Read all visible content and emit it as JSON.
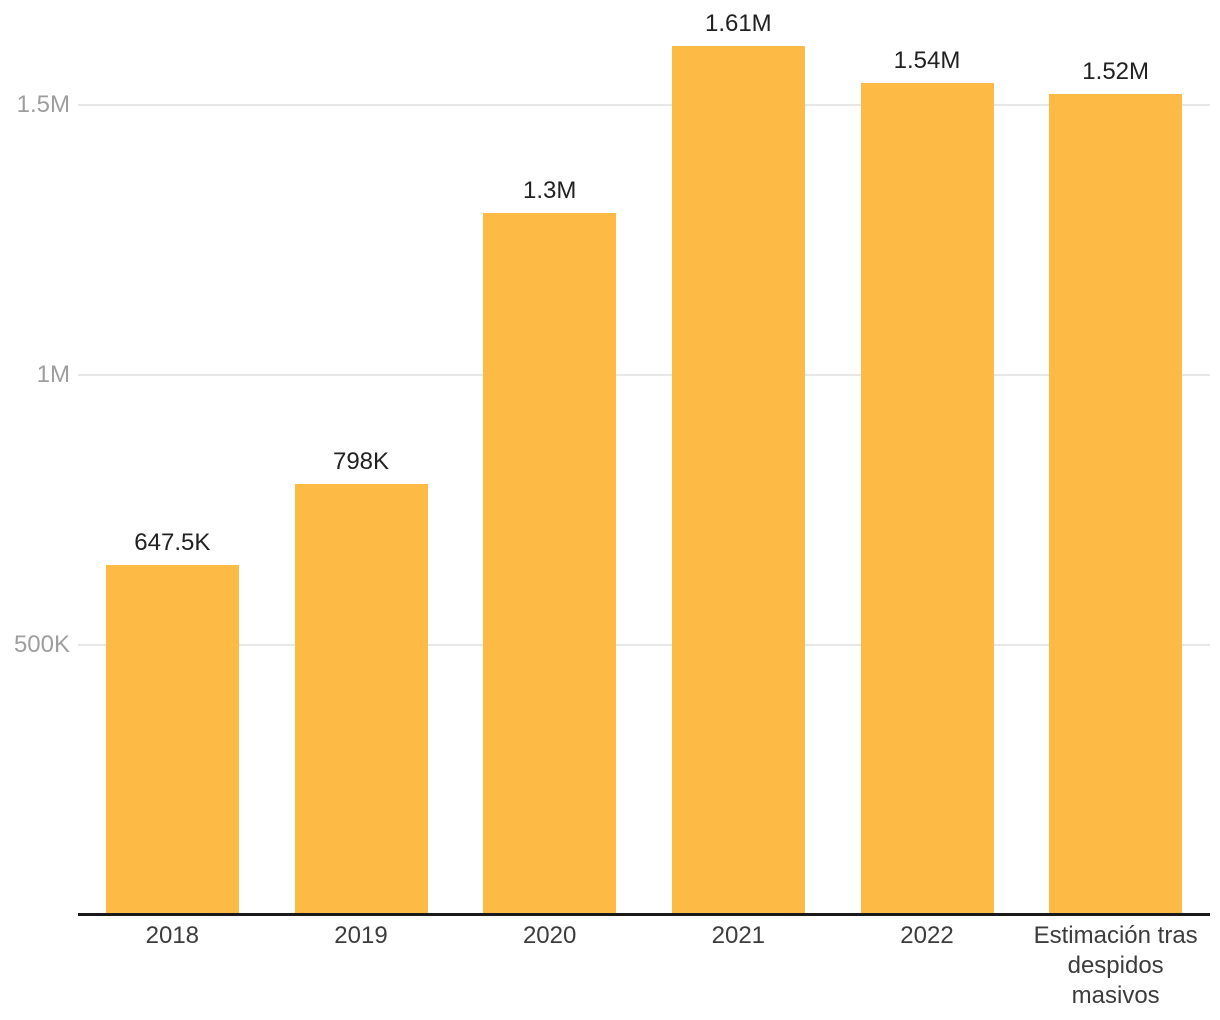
{
  "chart_data": {
    "type": "bar",
    "title": "",
    "xlabel": "",
    "ylabel": "",
    "legend": "none",
    "grid": true,
    "ylim": [
      0,
      1694000
    ],
    "categories": [
      "2018",
      "2019",
      "2020",
      "2021",
      "2022",
      "Estimación tras despidos masivos"
    ],
    "values": [
      647500,
      798000,
      1300000,
      1610000,
      1540000,
      1520000
    ],
    "value_labels": [
      "647.5K",
      "798K",
      "1.3M",
      "1.61M",
      "1.54M",
      "1.52M"
    ],
    "yticks": [
      {
        "value": 500000,
        "label": "500K"
      },
      {
        "value": 1000000,
        "label": "1M"
      },
      {
        "value": 1500000,
        "label": "1.5M"
      }
    ],
    "colors": {
      "bar": "#FDBA45",
      "axis_line": "#1A1A1A",
      "gridline": "#E7E7E7",
      "y_tick_label": "#9E9E9E",
      "value_label": "#212121",
      "x_tick_label": "#3C3C3C",
      "background": "#FFFFFF"
    }
  }
}
